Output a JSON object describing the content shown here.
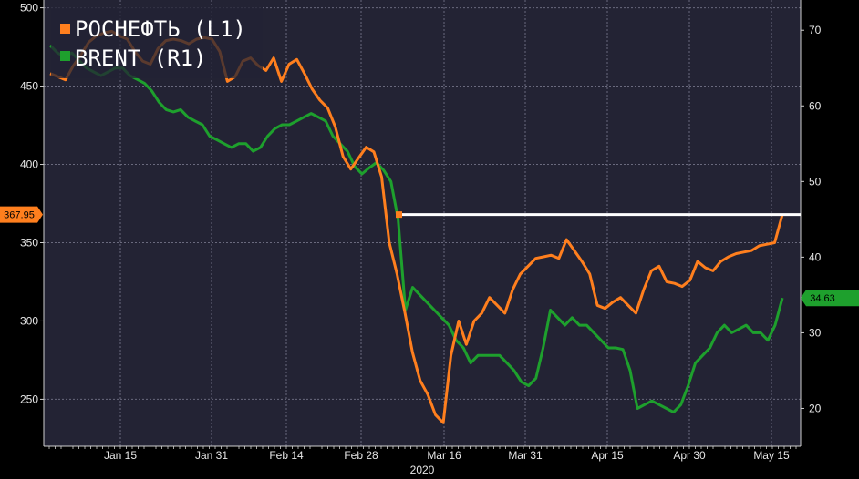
{
  "chart_data": {
    "type": "line",
    "x_tick_labels": [
      "Jan 15",
      "Jan 31",
      "Feb 14",
      "Feb 28",
      "Mar 16",
      "Mar 31",
      "Apr 15",
      "Apr 30",
      "May 15"
    ],
    "x_year_label": "2020",
    "ylim_left": [
      220,
      505
    ],
    "ylim_right": [
      15,
      74
    ],
    "y_ticks_left": [
      250,
      300,
      350,
      400,
      450,
      500
    ],
    "y_ticks_right": [
      20,
      30,
      40,
      50,
      60,
      70
    ],
    "grid": true,
    "legend_position": "top-left",
    "reference_level_left": 367.95,
    "reference_level_label": "367.95",
    "last_value_right_label": "34.63",
    "series": [
      {
        "name": "РОСНЕФТЬ (L1)",
        "axis": "left",
        "color": "#ff7f1e",
        "values": [
          458,
          456,
          454,
          463,
          470,
          478,
          482,
          484,
          485,
          482,
          480,
          472,
          466,
          464,
          474,
          479,
          480,
          479,
          477,
          480,
          481,
          480,
          472,
          453,
          456,
          466,
          468,
          463,
          460,
          468,
          453,
          464,
          467,
          458,
          448,
          441,
          436,
          424,
          405,
          397,
          404,
          411,
          408,
          392,
          350,
          330,
          306,
          280,
          262,
          253,
          240,
          235,
          278,
          300,
          285,
          300,
          305,
          315,
          310,
          305,
          320,
          330,
          335,
          340,
          341,
          342,
          340,
          352,
          345,
          338,
          330,
          310,
          308,
          312,
          315,
          310,
          305,
          320,
          332,
          335,
          325,
          324,
          322,
          326,
          338,
          334,
          332,
          338,
          341,
          343,
          344,
          345,
          348,
          349,
          350,
          368
        ],
        "line_x_values": [
          0,
          1,
          2,
          3,
          4,
          5,
          6,
          7,
          8,
          9,
          10,
          11,
          12,
          13,
          14,
          15,
          16,
          17,
          18,
          19,
          20,
          21,
          22,
          23,
          24,
          25,
          26,
          27,
          28,
          29,
          30,
          31,
          32,
          33,
          34,
          35,
          36,
          37,
          38,
          39,
          40,
          41,
          42,
          43,
          44,
          45,
          46,
          47,
          48,
          49,
          50,
          51,
          52,
          53,
          54,
          55,
          56,
          57,
          58,
          59,
          60,
          61,
          62,
          63,
          64,
          65,
          66,
          67,
          68,
          69,
          70,
          71,
          72,
          73,
          74,
          75,
          76,
          77,
          78,
          79,
          80,
          81,
          82,
          83,
          84,
          85,
          86,
          87,
          88,
          89,
          90,
          91,
          92,
          93,
          94,
          95
        ]
      },
      {
        "name": "BRENT (R1)",
        "axis": "right",
        "color": "#1ea02d",
        "values": [
          68,
          67,
          66.5,
          67,
          66,
          65,
          64.5,
          64,
          64.5,
          65,
          65,
          64,
          63.5,
          63,
          62,
          60.5,
          59.5,
          59.2,
          59.5,
          58.5,
          58,
          57.5,
          56,
          55.5,
          55,
          54.5,
          55,
          55,
          54,
          54.5,
          56,
          57,
          57.5,
          57.5,
          58,
          58.5,
          59,
          58.5,
          58,
          56,
          55,
          54,
          52,
          51,
          51.8,
          52.5,
          51.5,
          50,
          45,
          33,
          36,
          35,
          34,
          33,
          32,
          31,
          29,
          28,
          26,
          27,
          27,
          27,
          27,
          26,
          25,
          23.5,
          23,
          24,
          28,
          33,
          32,
          31,
          32,
          31,
          31,
          30,
          29,
          28,
          28,
          27.8,
          25,
          20,
          20.5,
          21,
          20.5,
          20,
          19.5,
          20.5,
          23,
          26,
          27,
          28,
          30,
          31,
          30,
          30.5,
          31,
          30,
          30,
          29,
          31,
          34.6
        ],
        "line_x_values": [
          0,
          1,
          2,
          3,
          4,
          5,
          6,
          7,
          8,
          9,
          10,
          11,
          12,
          13,
          14,
          15,
          16,
          17,
          18,
          19,
          20,
          21,
          22,
          23,
          24,
          25,
          26,
          27,
          28,
          29,
          30,
          31,
          32,
          33,
          34,
          35,
          36,
          37,
          38,
          39,
          40,
          41,
          42,
          43,
          44,
          45,
          46,
          47,
          48,
          49,
          50,
          51,
          52,
          53,
          54,
          55,
          56,
          57,
          58,
          59,
          60,
          61,
          62,
          63,
          64,
          65,
          66,
          67,
          68,
          69,
          70,
          71,
          72,
          73,
          74,
          75,
          76,
          77,
          78,
          79,
          80,
          81,
          82,
          83,
          84,
          85,
          86,
          87,
          88,
          89,
          90,
          91,
          92,
          93,
          94,
          95,
          96,
          97,
          98,
          99,
          100,
          101
        ]
      }
    ]
  }
}
